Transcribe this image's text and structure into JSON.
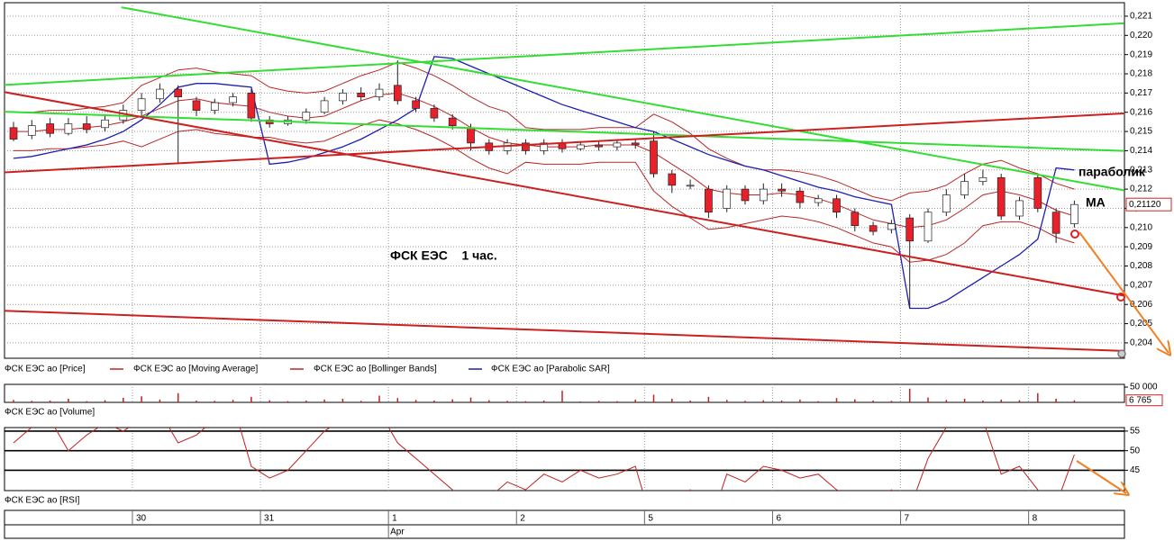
{
  "chart_data": [
    {
      "type": "candlestick",
      "name": "ФСК ЕЭС ао [Price]",
      "annotations": [
        "ФСК ЕЭС    1 час.",
        "параболик",
        "МА"
      ],
      "categories": [
        null,
        null,
        null,
        null,
        null,
        null,
        null,
        "30",
        null,
        null,
        null,
        null,
        null,
        null,
        "31",
        null,
        null,
        null,
        null,
        null,
        null,
        "1",
        null,
        null,
        null,
        null,
        null,
        null,
        "2",
        null,
        null,
        null,
        null,
        null,
        null,
        "5",
        null,
        null,
        null,
        null,
        null,
        null,
        "6",
        null,
        null,
        null,
        null,
        null,
        null,
        "7",
        null,
        null,
        null,
        null,
        null,
        null,
        "8",
        null,
        null
      ],
      "months": [
        null,
        null,
        null,
        null,
        null,
        null,
        null,
        null,
        null,
        null,
        null,
        null,
        null,
        null,
        null,
        null,
        null,
        null,
        null,
        null,
        null,
        "Apr",
        null,
        null,
        null,
        null,
        null,
        null,
        null,
        null,
        null,
        null,
        null,
        null,
        null,
        null,
        null,
        null,
        null,
        null,
        null,
        null,
        null,
        null,
        null,
        null,
        null,
        null,
        null,
        null,
        null,
        null,
        null,
        null,
        null,
        null,
        null,
        null,
        null
      ],
      "open": [
        0.2152,
        0.2148,
        0.2154,
        0.2149,
        0.2154,
        0.2152,
        0.2156,
        0.2161,
        0.2167,
        0.2172,
        0.2166,
        0.2161,
        0.2165,
        0.217,
        0.2156,
        0.2154,
        0.2156,
        0.216,
        0.2166,
        0.217,
        0.2168,
        0.2174,
        0.2166,
        0.2162,
        0.2157,
        0.2152,
        0.2144,
        0.214,
        0.2144,
        0.214,
        0.2144,
        0.2141,
        0.2143,
        0.2142,
        0.2144,
        0.2145,
        0.2128,
        0.2122,
        0.212,
        0.211,
        0.212,
        0.2114,
        0.212,
        0.2119,
        0.2113,
        0.2115,
        0.2108,
        0.2101,
        0.2099,
        0.2105,
        0.2093,
        0.2108,
        0.2117,
        0.2124,
        0.2126,
        0.2106,
        0.2126,
        0.2108,
        0.2102
      ],
      "high": [
        0.2155,
        0.2156,
        0.2157,
        0.2157,
        0.2158,
        0.2159,
        0.2164,
        0.217,
        0.2175,
        0.2174,
        0.2168,
        0.2167,
        0.217,
        0.2172,
        0.2158,
        0.2158,
        0.2162,
        0.2168,
        0.2172,
        0.2173,
        0.2175,
        0.2187,
        0.2168,
        0.2164,
        0.2159,
        0.2154,
        0.2146,
        0.2146,
        0.2146,
        0.2146,
        0.2146,
        0.2145,
        0.2145,
        0.2146,
        0.2146,
        0.215,
        0.213,
        0.2125,
        0.2122,
        0.2122,
        0.2122,
        0.2123,
        0.2123,
        0.2121,
        0.2117,
        0.2117,
        0.211,
        0.2103,
        0.2104,
        0.2107,
        0.211,
        0.212,
        0.2128,
        0.213,
        0.2128,
        0.2116,
        0.2128,
        0.211,
        0.2114
      ],
      "low": [
        0.2145,
        0.2146,
        0.2147,
        0.2148,
        0.2149,
        0.215,
        0.2154,
        0.2158,
        0.2165,
        0.2133,
        0.2158,
        0.2159,
        0.2163,
        0.2155,
        0.2152,
        0.2153,
        0.2154,
        0.2159,
        0.2164,
        0.2166,
        0.2166,
        0.2164,
        0.216,
        0.2155,
        0.2151,
        0.214,
        0.2138,
        0.2138,
        0.2138,
        0.2138,
        0.2139,
        0.214,
        0.214,
        0.214,
        0.2141,
        0.2126,
        0.2118,
        0.212,
        0.2105,
        0.2108,
        0.2112,
        0.2112,
        0.2116,
        0.211,
        0.2111,
        0.2105,
        0.2098,
        0.2096,
        0.2097,
        0.2058,
        0.2092,
        0.2106,
        0.2115,
        0.2122,
        0.2104,
        0.2104,
        0.2108,
        0.2092,
        0.21
      ],
      "close": [
        0.2146,
        0.2153,
        0.2149,
        0.2154,
        0.2151,
        0.2156,
        0.2161,
        0.2167,
        0.2172,
        0.2168,
        0.2161,
        0.2165,
        0.2168,
        0.2157,
        0.2154,
        0.2156,
        0.216,
        0.2166,
        0.217,
        0.2168,
        0.2172,
        0.2166,
        0.2162,
        0.2157,
        0.2153,
        0.2144,
        0.214,
        0.2144,
        0.214,
        0.2144,
        0.2141,
        0.2143,
        0.2142,
        0.2144,
        0.2143,
        0.2128,
        0.2122,
        0.2122,
        0.2108,
        0.212,
        0.2114,
        0.212,
        0.2119,
        0.2113,
        0.2115,
        0.2108,
        0.2101,
        0.2098,
        0.2102,
        0.2093,
        0.2108,
        0.2117,
        0.2124,
        0.2126,
        0.2106,
        0.2114,
        0.211,
        0.2097,
        0.2112
      ],
      "up_color": "#ffffff",
      "down_color": "#e8202a",
      "series": [
        {
          "name": "ФСК ЕЭС ао [Moving Average]",
          "color": "#b82828",
          "values": [
            0.215,
            0.215,
            0.2151,
            0.2151,
            0.2152,
            0.2153,
            0.2155,
            0.2158,
            0.2162,
            0.2166,
            0.2167,
            0.2165,
            0.2164,
            0.2163,
            0.216,
            0.2158,
            0.2157,
            0.2158,
            0.2162,
            0.2166,
            0.2169,
            0.217,
            0.2167,
            0.2163,
            0.2158,
            0.2152,
            0.2147,
            0.2144,
            0.2143,
            0.2142,
            0.2142,
            0.2142,
            0.2143,
            0.2143,
            0.2143,
            0.2139,
            0.2133,
            0.2127,
            0.212,
            0.2118,
            0.2117,
            0.2117,
            0.2118,
            0.2117,
            0.2115,
            0.2112,
            0.2108,
            0.2104,
            0.2102,
            0.21,
            0.2101,
            0.2104,
            0.211,
            0.2117,
            0.2119,
            0.2117,
            0.2114,
            0.2109,
            0.2106
          ]
        },
        {
          "name": "ФСК ЕЭС ао [Bollinger Bands]",
          "color": "#b82828",
          "upper": [
            0.216,
            0.216,
            0.2161,
            0.2161,
            0.2162,
            0.2163,
            0.2165,
            0.2174,
            0.2178,
            0.2182,
            0.2183,
            0.2181,
            0.218,
            0.2179,
            0.2173,
            0.2171,
            0.217,
            0.2171,
            0.2175,
            0.2179,
            0.2182,
            0.2186,
            0.2183,
            0.2179,
            0.2174,
            0.2168,
            0.2163,
            0.216,
            0.2152,
            0.2151,
            0.2151,
            0.2151,
            0.2152,
            0.2152,
            0.2152,
            0.2159,
            0.2155,
            0.2149,
            0.2141,
            0.2136,
            0.2132,
            0.213,
            0.213,
            0.2129,
            0.2127,
            0.2124,
            0.212,
            0.2116,
            0.2114,
            0.2118,
            0.2119,
            0.2122,
            0.2128,
            0.2133,
            0.2135,
            0.2131,
            0.2128,
            0.2123,
            0.212
          ],
          "lower": [
            0.214,
            0.214,
            0.2141,
            0.2141,
            0.2142,
            0.2143,
            0.2145,
            0.2142,
            0.2146,
            0.215,
            0.2151,
            0.2149,
            0.2148,
            0.2147,
            0.2147,
            0.2145,
            0.2144,
            0.2145,
            0.2149,
            0.2153,
            0.2156,
            0.2154,
            0.2151,
            0.2147,
            0.2142,
            0.2136,
            0.2131,
            0.2128,
            0.2134,
            0.2133,
            0.2133,
            0.2133,
            0.2134,
            0.2134,
            0.2134,
            0.2119,
            0.2111,
            0.2105,
            0.2099,
            0.21,
            0.2102,
            0.2104,
            0.2106,
            0.2105,
            0.2103,
            0.21,
            0.2096,
            0.2092,
            0.209,
            0.2082,
            0.2083,
            0.2086,
            0.2092,
            0.2101,
            0.2103,
            0.2103,
            0.21,
            0.2095,
            0.2092
          ]
        },
        {
          "name": "ФСК ЕЭС ао [Parabolic SAR]",
          "color": "#1e1eb4",
          "values": [
            0.2136,
            0.2137,
            0.2139,
            0.2141,
            0.2143,
            0.2146,
            0.215,
            0.2156,
            0.2164,
            0.2173,
            0.2175,
            0.2175,
            0.2174,
            0.2173,
            0.2133,
            0.2134,
            0.2136,
            0.2139,
            0.2142,
            0.2146,
            0.2151,
            0.2156,
            0.2162,
            0.2189,
            0.2188,
            0.2184,
            0.218,
            0.2176,
            0.2172,
            0.2168,
            0.2164,
            0.2161,
            0.2158,
            0.2155,
            0.2152,
            0.215,
            0.2146,
            0.2142,
            0.2138,
            0.2135,
            0.2132,
            0.213,
            0.2127,
            0.2124,
            0.2121,
            0.2119,
            0.2116,
            0.2114,
            0.2112,
            0.2058,
            0.2058,
            0.2062,
            0.2068,
            0.2074,
            0.208,
            0.2086,
            0.2094,
            0.2131,
            0.213
          ]
        }
      ],
      "trendlines": [
        {
          "color": "#33dd33",
          "x": [
            5.9,
            60.7
          ],
          "y": [
            0.22146,
            0.21194
          ]
        },
        {
          "color": "#33dd33",
          "x": [
            -0.5,
            60.7
          ],
          "y": [
            0.21742,
            0.22063
          ]
        },
        {
          "color": "#33dd33",
          "x": [
            -0.5,
            60.7
          ],
          "y": [
            0.21603,
            0.21399
          ]
        },
        {
          "color": "#cc2020",
          "x": [
            -0.5,
            60.7
          ],
          "y": [
            0.21705,
            0.20646
          ]
        },
        {
          "color": "#cc2020",
          "x": [
            -0.5,
            60.7
          ],
          "y": [
            0.21287,
            0.21594
          ]
        },
        {
          "color": "#cc2020",
          "x": [
            -0.5,
            60.7
          ],
          "y": [
            0.20567,
            0.20358
          ]
        }
      ],
      "price_label": {
        "value": 0.2112,
        "label": "0,21120"
      },
      "ylim": [
        0.2032,
        0.2217
      ],
      "yticks": [
        {
          "value": 0.204,
          "label": "0,204"
        },
        {
          "value": 0.205,
          "label": "0,205"
        },
        {
          "value": 0.206,
          "label": "0,206"
        },
        {
          "value": 0.207,
          "label": "0,207"
        },
        {
          "value": 0.208,
          "label": "0,208"
        },
        {
          "value": 0.209,
          "label": "0,209"
        },
        {
          "value": 0.21,
          "label": "0,210"
        },
        {
          "value": 0.211,
          "label": "0,211"
        },
        {
          "value": 0.212,
          "label": "0,212"
        },
        {
          "value": 0.213,
          "label": "0,213"
        },
        {
          "value": 0.214,
          "label": "0,214"
        },
        {
          "value": 0.215,
          "label": "0,215"
        },
        {
          "value": 0.216,
          "label": "0,216"
        },
        {
          "value": 0.217,
          "label": "0,217"
        },
        {
          "value": 0.218,
          "label": "0,218"
        },
        {
          "value": 0.219,
          "label": "0,219"
        },
        {
          "value": 0.22,
          "label": "0,220"
        },
        {
          "value": 0.221,
          "label": "0,221"
        }
      ],
      "grid": true
    },
    {
      "type": "bar",
      "name": "ФСК ЕЭС ао [Volume]",
      "color": "#c02020",
      "values": [
        8000,
        5000,
        6000,
        12000,
        4000,
        7000,
        15000,
        20000,
        9000,
        30000,
        6000,
        5000,
        8000,
        18000,
        7000,
        4000,
        6000,
        9000,
        12000,
        5000,
        22000,
        14000,
        8000,
        6000,
        10000,
        16000,
        7000,
        5000,
        4000,
        6000,
        38000,
        3000,
        5000,
        4000,
        9000,
        25000,
        12000,
        6000,
        18000,
        8000,
        5000,
        7000,
        6000,
        9000,
        4000,
        14000,
        10000,
        6000,
        5000,
        45000,
        16000,
        8000,
        12000,
        6000,
        9000,
        7000,
        30000,
        12000,
        6765
      ],
      "value_labels": [
        null,
        null,
        null,
        null,
        null,
        null,
        null,
        null,
        null,
        null,
        null,
        null,
        null,
        null,
        null,
        null,
        null,
        null,
        null,
        null,
        null,
        null,
        null,
        null,
        null,
        null,
        null,
        null,
        null,
        null,
        null,
        null,
        null,
        null,
        null,
        null,
        null,
        null,
        null,
        null,
        null,
        null,
        null,
        null,
        null,
        null,
        null,
        null,
        null,
        null,
        null,
        null,
        null,
        null,
        null,
        null,
        null,
        null,
        "6 765"
      ],
      "ylim": [
        0,
        59000
      ],
      "yticks": [
        {
          "value": 50000,
          "label": "50 000"
        }
      ],
      "grid": false
    },
    {
      "type": "line",
      "name": "ФСК ЕЭС ао [RSI]",
      "color": "#c02020",
      "values": [
        52,
        56,
        58,
        50,
        54,
        57,
        55,
        58,
        60,
        52,
        54,
        58,
        62,
        46,
        43,
        45,
        50,
        55,
        58,
        56,
        60,
        52,
        48,
        44,
        40,
        36,
        38,
        42,
        40,
        44,
        42,
        45,
        43,
        44,
        46,
        30,
        34,
        40,
        30,
        44,
        42,
        46,
        45,
        43,
        44,
        40,
        38,
        36,
        40,
        35,
        48,
        56,
        60,
        58,
        44,
        46,
        40,
        36,
        49
      ],
      "ylim": [
        39.8,
        55.9
      ],
      "yticks": [
        55,
        50,
        45
      ],
      "grid": true
    }
  ]
}
